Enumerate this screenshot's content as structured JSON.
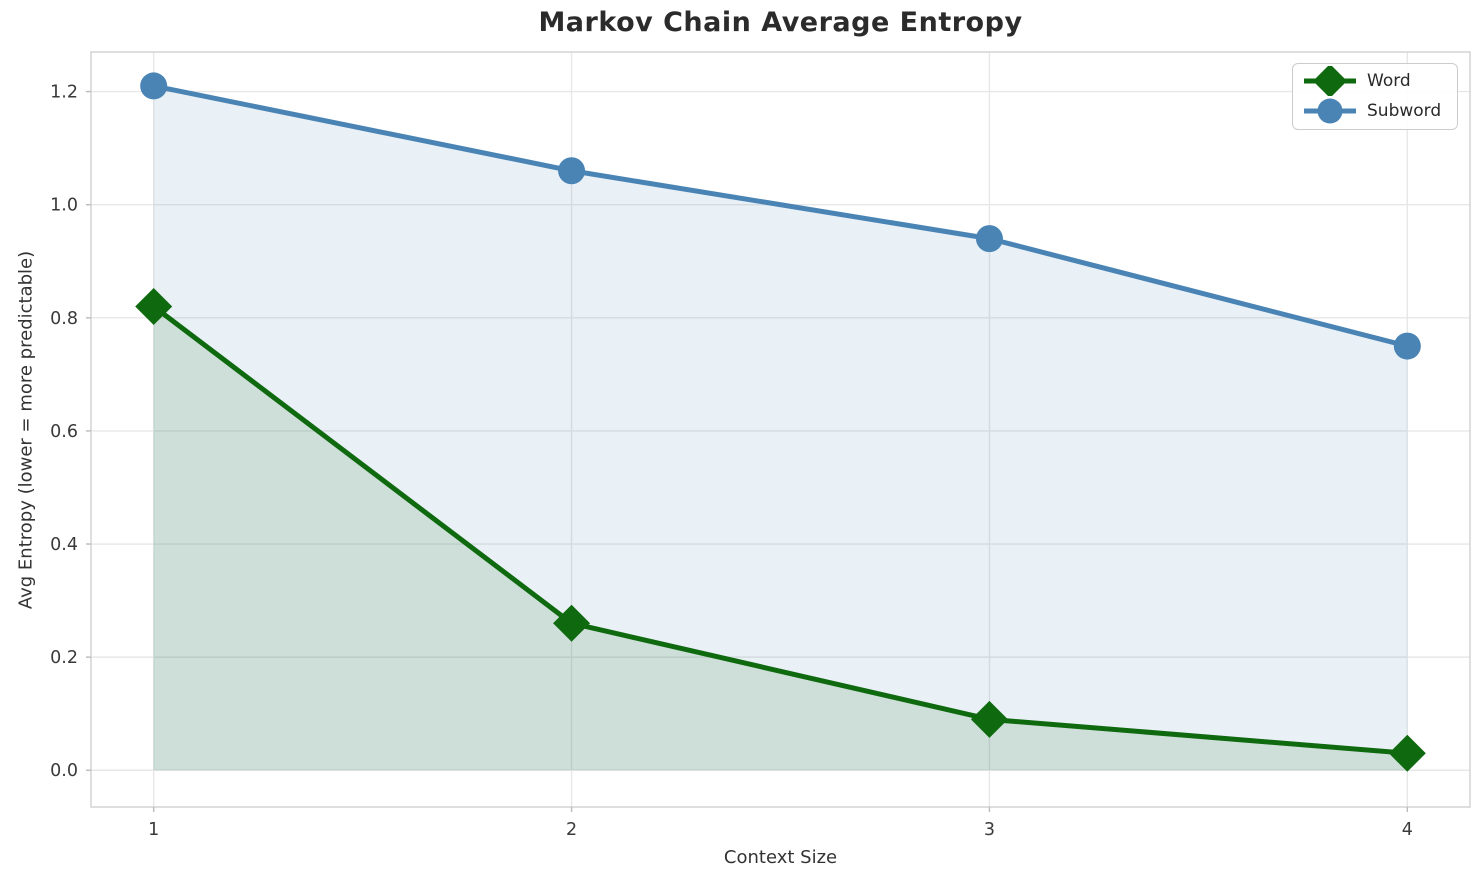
{
  "chart_data": {
    "type": "line",
    "title": "Markov Chain Average Entropy",
    "xlabel": "Context Size",
    "ylabel": "Avg Entropy (lower = more predictable)",
    "x": [
      1,
      2,
      3,
      4
    ],
    "x_tick_labels": [
      "1",
      "2",
      "3",
      "4"
    ],
    "y_tick_values": [
      0.0,
      0.2,
      0.4,
      0.6,
      0.8,
      1.0,
      1.2
    ],
    "y_tick_labels": [
      "0.0",
      "0.2",
      "0.4",
      "0.6",
      "0.8",
      "1.0",
      "1.2"
    ],
    "xlim": [
      0.85,
      4.15
    ],
    "ylim": [
      -0.065,
      1.27
    ],
    "grid": true,
    "grid_color": "#e7e7e7",
    "spine_color": "#d6d6d6",
    "tick_label_color": "#3a3a3a",
    "area_baseline": 0,
    "legend_position": "upper right",
    "series": [
      {
        "name": "Word",
        "marker": "diamond",
        "color": "#0f6a0f",
        "fill_alpha": 0.12,
        "values": [
          0.82,
          0.26,
          0.09,
          0.03
        ]
      },
      {
        "name": "Subword",
        "marker": "circle",
        "color": "#4a84b5",
        "fill_alpha": 0.12,
        "values": [
          1.21,
          1.06,
          0.94,
          0.75
        ]
      }
    ]
  }
}
